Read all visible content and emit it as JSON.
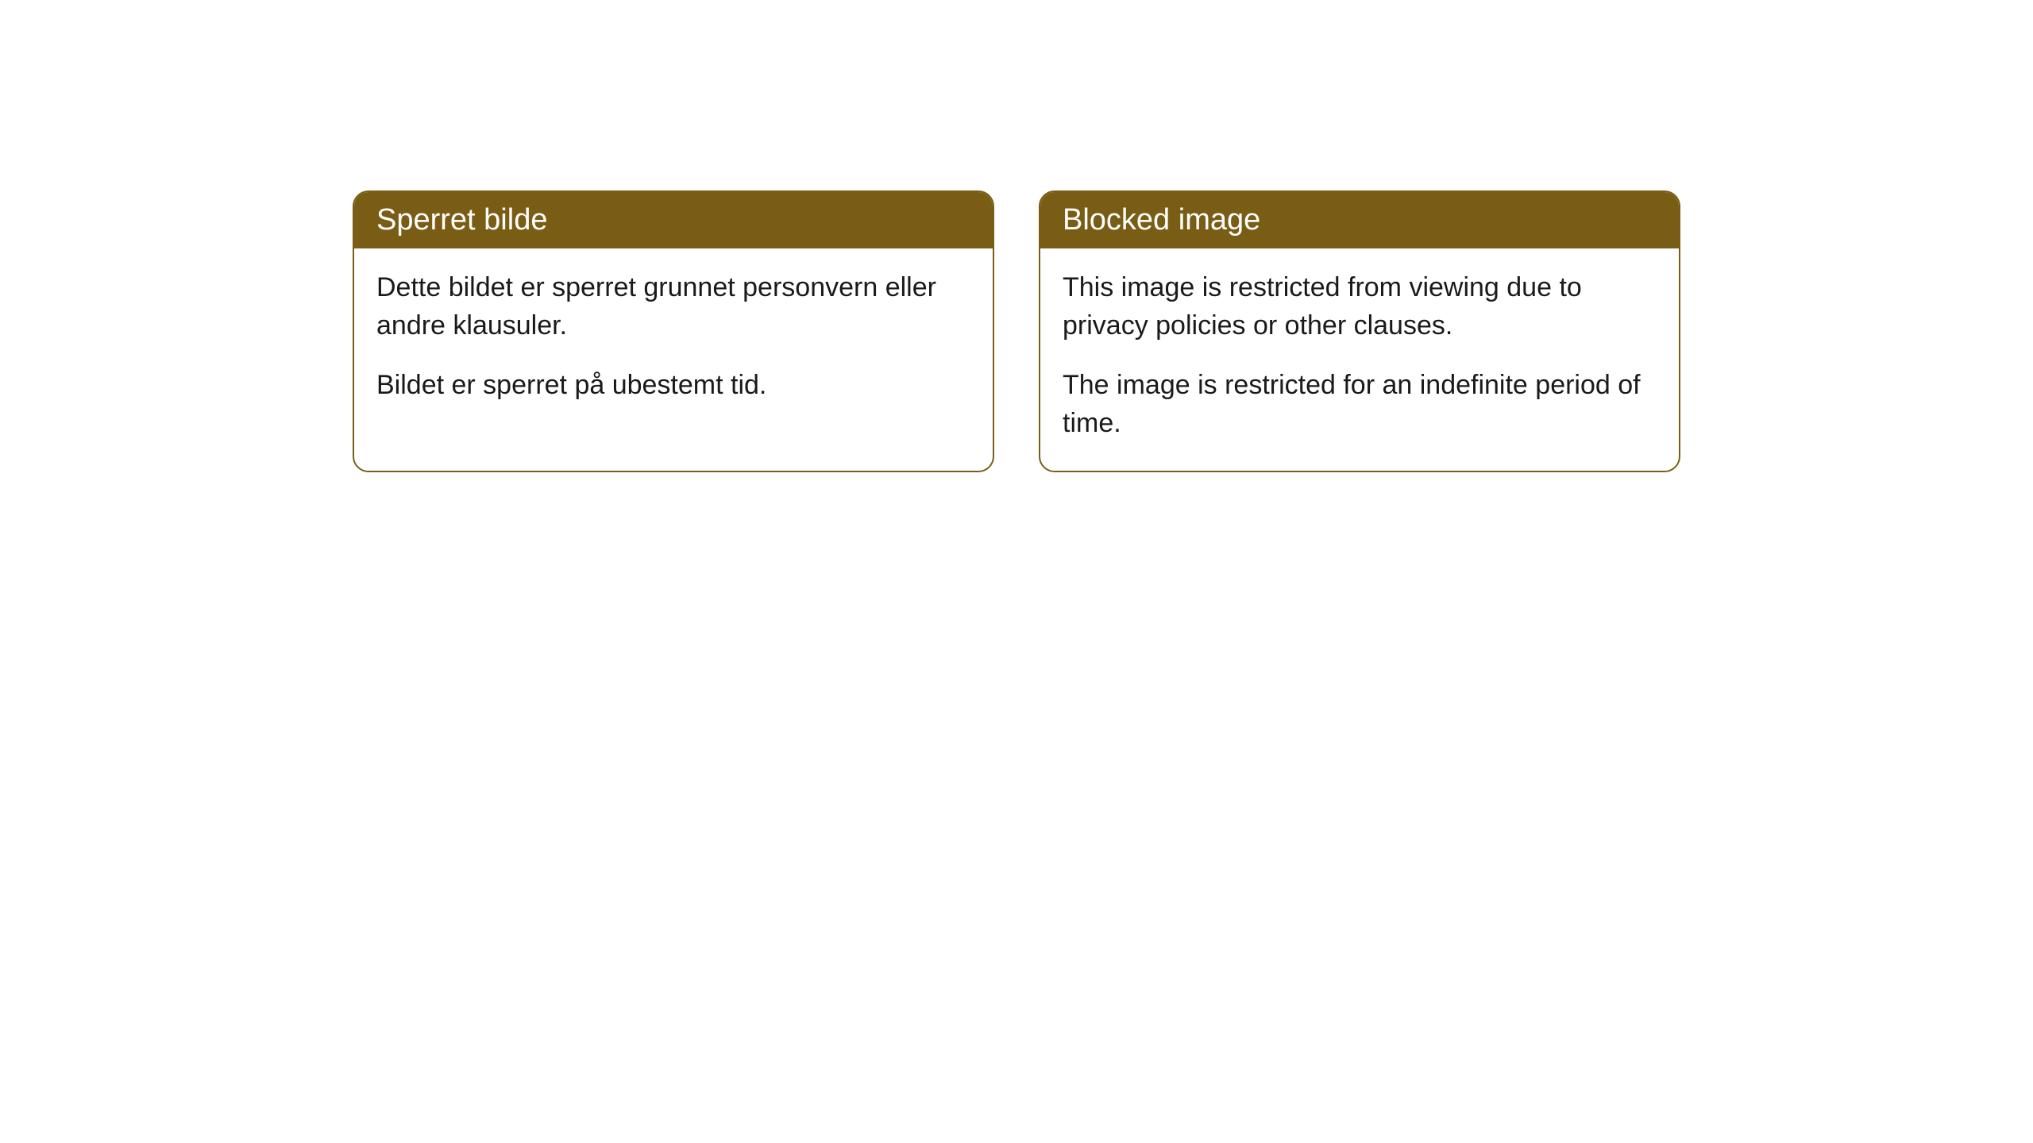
{
  "cards": [
    {
      "title": "Sperret bilde",
      "paragraph1": "Dette bildet er sperret grunnet personvern eller andre klausuler.",
      "paragraph2": "Bildet er sperret på ubestemt tid."
    },
    {
      "title": "Blocked image",
      "paragraph1": "This image is restricted from viewing due to privacy policies or other clauses.",
      "paragraph2": "The image is restricted for an indefinite period of time."
    }
  ],
  "colors": {
    "header_bg": "#7a5d15",
    "header_text": "#ffffff",
    "body_text": "#1a1a1a",
    "card_bg": "#ffffff",
    "border": "#7a5d15"
  }
}
